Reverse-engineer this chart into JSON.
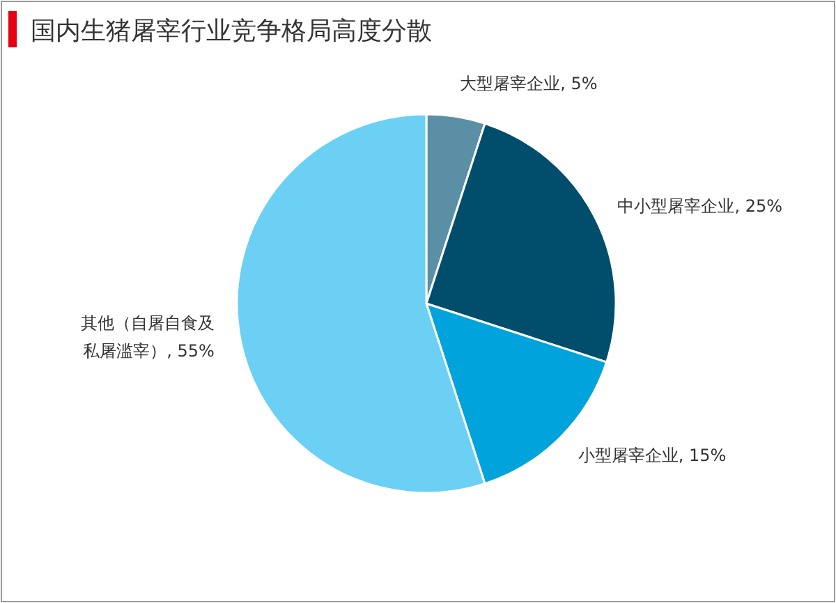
{
  "chart_data": {
    "type": "pie",
    "title": "国内生猪屠宰行业竞争格局高度分散",
    "categories": [
      "大型屠宰企业",
      "中小型屠宰企业",
      "小型屠宰企业",
      "其他（自屠自食及私屠滥宰）"
    ],
    "values": [
      5,
      25,
      15,
      55
    ],
    "value_labels": [
      "5%",
      "25%",
      "15%",
      "55%"
    ],
    "colors": [
      "#5b8fa6",
      "#004e6c",
      "#00a3dc",
      "#6ccff4"
    ]
  }
}
